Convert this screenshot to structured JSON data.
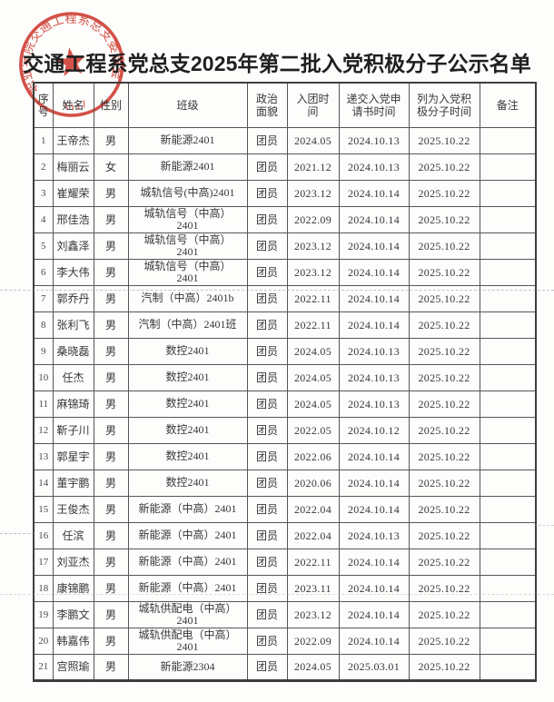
{
  "document": {
    "title": "交通工程系党总支2025年第二批入党积极分子公示名单"
  },
  "stamp": {
    "arc_text": "职业学院交通工程系总支委员会",
    "color": "#cf3a31"
  },
  "table": {
    "headers": [
      "序\n号",
      "姓名",
      "性别",
      "班级",
      "政治\n面貌",
      "入团时\n间",
      "递交入党申\n请书时间",
      "列为入党积\n极分子时间",
      "备注"
    ],
    "rows": [
      [
        "1",
        "王帝杰",
        "男",
        "新能源2401",
        "团员",
        "2024.05",
        "2024.10.13",
        "2025.10.22",
        ""
      ],
      [
        "2",
        "梅丽云",
        "女",
        "新能源2401",
        "团员",
        "2021.12",
        "2024.10.13",
        "2025.10.22",
        ""
      ],
      [
        "3",
        "崔耀荣",
        "男",
        "城轨信号(中高)2401",
        "团员",
        "2023.12",
        "2024.10.14",
        "2025.10.22",
        ""
      ],
      [
        "4",
        "邢佳浩",
        "男",
        "城轨信号（中高）\n2401",
        "团员",
        "2022.09",
        "2024.10.14",
        "2025.10.22",
        ""
      ],
      [
        "5",
        "刘鑫泽",
        "男",
        "城轨信号（中高）\n2401",
        "团员",
        "2023.12",
        "2024.10.14",
        "2025.10.22",
        ""
      ],
      [
        "6",
        "李大伟",
        "男",
        "城轨信号（中高）\n2401",
        "团员",
        "2023.12",
        "2024.10.14",
        "2025.10.22",
        ""
      ],
      [
        "7",
        "郭乔丹",
        "男",
        "汽制（中高）2401b",
        "团员",
        "2022.11",
        "2024.10.14",
        "2025.10.22",
        ""
      ],
      [
        "8",
        "张利飞",
        "男",
        "汽制（中高）2401班",
        "团员",
        "2022.11",
        "2024.10.14",
        "2025.10.22",
        ""
      ],
      [
        "9",
        "桑晓磊",
        "男",
        "数控2401",
        "团员",
        "2024.05",
        "2024.10.13",
        "2025.10.22",
        ""
      ],
      [
        "10",
        "任杰",
        "男",
        "数控2401",
        "团员",
        "2024.05",
        "2024.10.13",
        "2025.10.22",
        ""
      ],
      [
        "11",
        "麻锦琦",
        "男",
        "数控2401",
        "团员",
        "2024.05",
        "2024.10.13",
        "2025.10.22",
        ""
      ],
      [
        "12",
        "靳子川",
        "男",
        "数控2401",
        "团员",
        "2022.05",
        "2024.10.12",
        "2025.10.22",
        ""
      ],
      [
        "13",
        "郭星宇",
        "男",
        "数控2401",
        "团员",
        "2022.06",
        "2024.10.14",
        "2025.10.22",
        ""
      ],
      [
        "14",
        "董宇鹏",
        "男",
        "数控2401",
        "团员",
        "2020.06",
        "2024.10.14",
        "2025.10.22",
        ""
      ],
      [
        "15",
        "王俊杰",
        "男",
        "新能源（中高）2401",
        "团员",
        "2022.04",
        "2024.10.14",
        "2025.10.22",
        ""
      ],
      [
        "16",
        "任滨",
        "男",
        "新能源（中高）2401",
        "团员",
        "2022.04",
        "2024.10.13",
        "2025.10.22",
        ""
      ],
      [
        "17",
        "刘亚杰",
        "男",
        "新能源（中高）2401",
        "团员",
        "2022.11",
        "2024.10.14",
        "2025.10.22",
        ""
      ],
      [
        "18",
        "康锦鹏",
        "男",
        "新能源（中高）2401",
        "团员",
        "2023.11",
        "2024.10.14",
        "2025.10.22",
        ""
      ],
      [
        "19",
        "李鹏文",
        "男",
        "城轨供配电（中高）\n2401",
        "团员",
        "2023.12",
        "2024.10.14",
        "2025.10.22",
        ""
      ],
      [
        "20",
        "韩嘉伟",
        "男",
        "城轨供配电（中高）\n2401",
        "团员",
        "2022.09",
        "2024.10.14",
        "2025.10.22",
        ""
      ],
      [
        "21",
        "宫照瑜",
        "男",
        "新能源2304",
        "团员",
        "2024.05",
        "2025.03.01",
        "2025.10.22",
        ""
      ]
    ]
  }
}
